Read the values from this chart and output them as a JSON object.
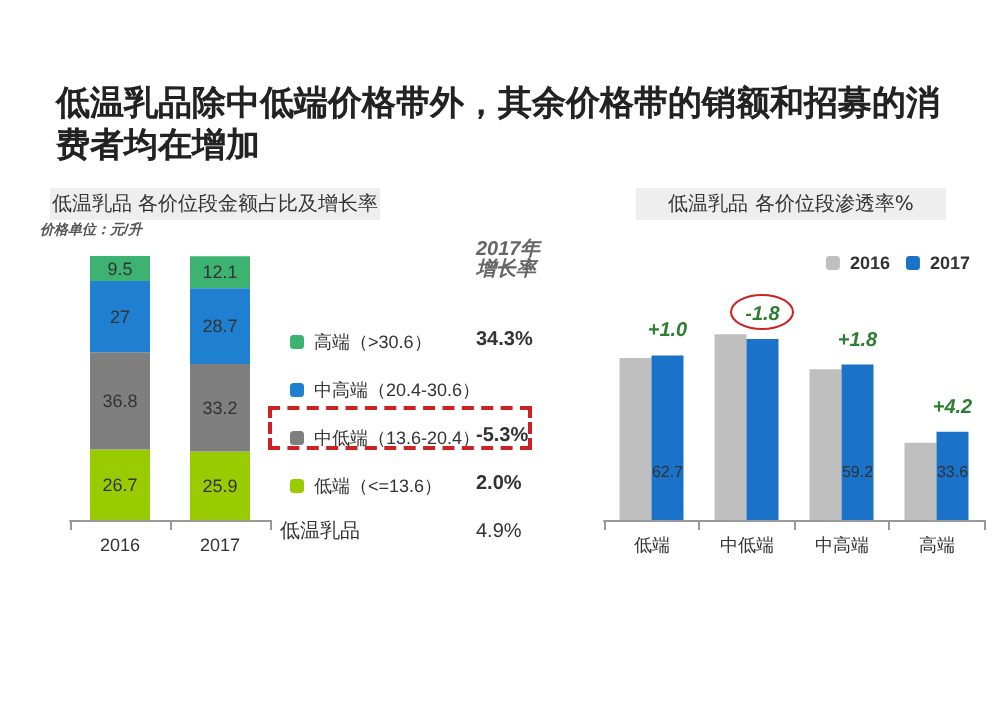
{
  "chart_data": [
    {
      "type": "bar",
      "title": "低温乳品除中低端价格带外，其余价格带的销额和招募的消费者均在增加",
      "subtitle": "低温乳品 各价位段金额占比及增长率",
      "categories": [
        "2016",
        "2017"
      ],
      "stacked": true,
      "data_labels": true,
      "legend": "right",
      "grid": false,
      "series": [
        {
          "name": "低端（<=13.6）",
          "color": "#99cc00",
          "values": [
            26.7,
            25.9
          ]
        },
        {
          "name": "中低端（13.6-20.4）",
          "color": "#7f7f7f",
          "values": [
            36.8,
            33.2
          ]
        },
        {
          "name": "中高端（20.4-30.6）",
          "color": "#1f7fd0",
          "values": [
            27.0,
            28.7
          ]
        },
        {
          "name": "高端（>30.6）",
          "color": "#3cb371",
          "values": [
            9.5,
            12.1
          ]
        }
      ],
      "annotations": [
        "价格单位：元/升",
        "2017年增长率",
        "34.3%",
        "-5.3%",
        "2.0%",
        "低温乳品",
        "4.9%"
      ]
    },
    {
      "type": "bar",
      "title": "低温乳品 各价位段渗透率%",
      "categories": [
        "低端",
        "中低端",
        "中高端",
        "高端"
      ],
      "legend": "top right",
      "grid": false,
      "series": [
        {
          "name": "2016",
          "color": "#bfbfbf",
          "values": [
            61.7,
            70.8,
            57.4,
            29.4
          ]
        },
        {
          "name": "2017",
          "color": "#1a73c8",
          "values": [
            62.7,
            69.0,
            59.2,
            33.6
          ],
          "value_labels": [
            "62.7",
            null,
            "59.2",
            "33.6"
          ]
        }
      ],
      "annotations": [
        "+1.0",
        "-1.8",
        "+1.8",
        "+4.2"
      ]
    }
  ]
}
